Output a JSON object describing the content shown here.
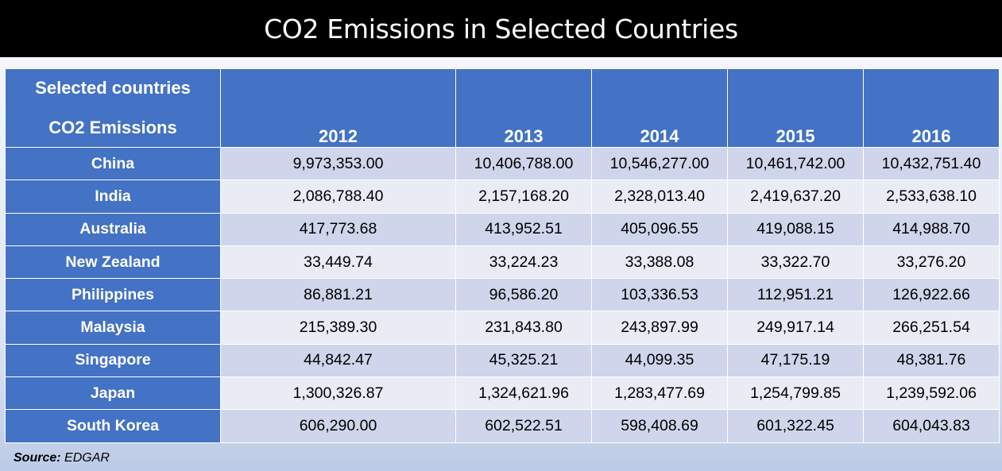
{
  "title": "CO2 Emissions in Selected Countries",
  "header": {
    "corner_line1": "Selected countries",
    "corner_line2": "CO2 Emissions"
  },
  "source": {
    "label": "Source:",
    "value": "EDGAR"
  },
  "colors": {
    "header_blue": "#4472c4",
    "row_light": "#cfd5ea",
    "row_lighter": "#e9ebf5",
    "title_bg": "#000000"
  },
  "chart_data": {
    "type": "table",
    "title": "CO2 Emissions in Selected Countries",
    "columns": [
      "2012",
      "2013",
      "2014",
      "2015",
      "2016"
    ],
    "rows": [
      {
        "country": "China",
        "values": [
          "9,973,353.00",
          "10,406,788.00",
          "10,546,277.00",
          "10,461,742.00",
          "10,432,751.40"
        ]
      },
      {
        "country": "India",
        "values": [
          "2,086,788.40",
          "2,157,168.20",
          "2,328,013.40",
          "2,419,637.20",
          "2,533,638.10"
        ]
      },
      {
        "country": "Australia",
        "values": [
          "417,773.68",
          "413,952.51",
          "405,096.55",
          "419,088.15",
          "414,988.70"
        ]
      },
      {
        "country": "New Zealand",
        "values": [
          "33,449.74",
          "33,224.23",
          "33,388.08",
          "33,322.70",
          "33,276.20"
        ]
      },
      {
        "country": "Philippines",
        "values": [
          "86,881.21",
          "96,586.20",
          "103,336.53",
          "112,951.21",
          "126,922.66"
        ]
      },
      {
        "country": "Malaysia",
        "values": [
          "215,389.30",
          "231,843.80",
          "243,897.99",
          "249,917.14",
          "266,251.54"
        ]
      },
      {
        "country": "Singapore",
        "values": [
          "44,842.47",
          "45,325.21",
          "44,099.35",
          "47,175.19",
          "48,381.76"
        ]
      },
      {
        "country": "Japan",
        "values": [
          "1,300,326.87",
          "1,324,621.96",
          "1,283,477.69",
          "1,254,799.85",
          "1,239,592.06"
        ]
      },
      {
        "country": "South Korea",
        "values": [
          "606,290.00",
          "602,522.51",
          "598,408.69",
          "601,322.45",
          "604,043.83"
        ]
      }
    ]
  }
}
